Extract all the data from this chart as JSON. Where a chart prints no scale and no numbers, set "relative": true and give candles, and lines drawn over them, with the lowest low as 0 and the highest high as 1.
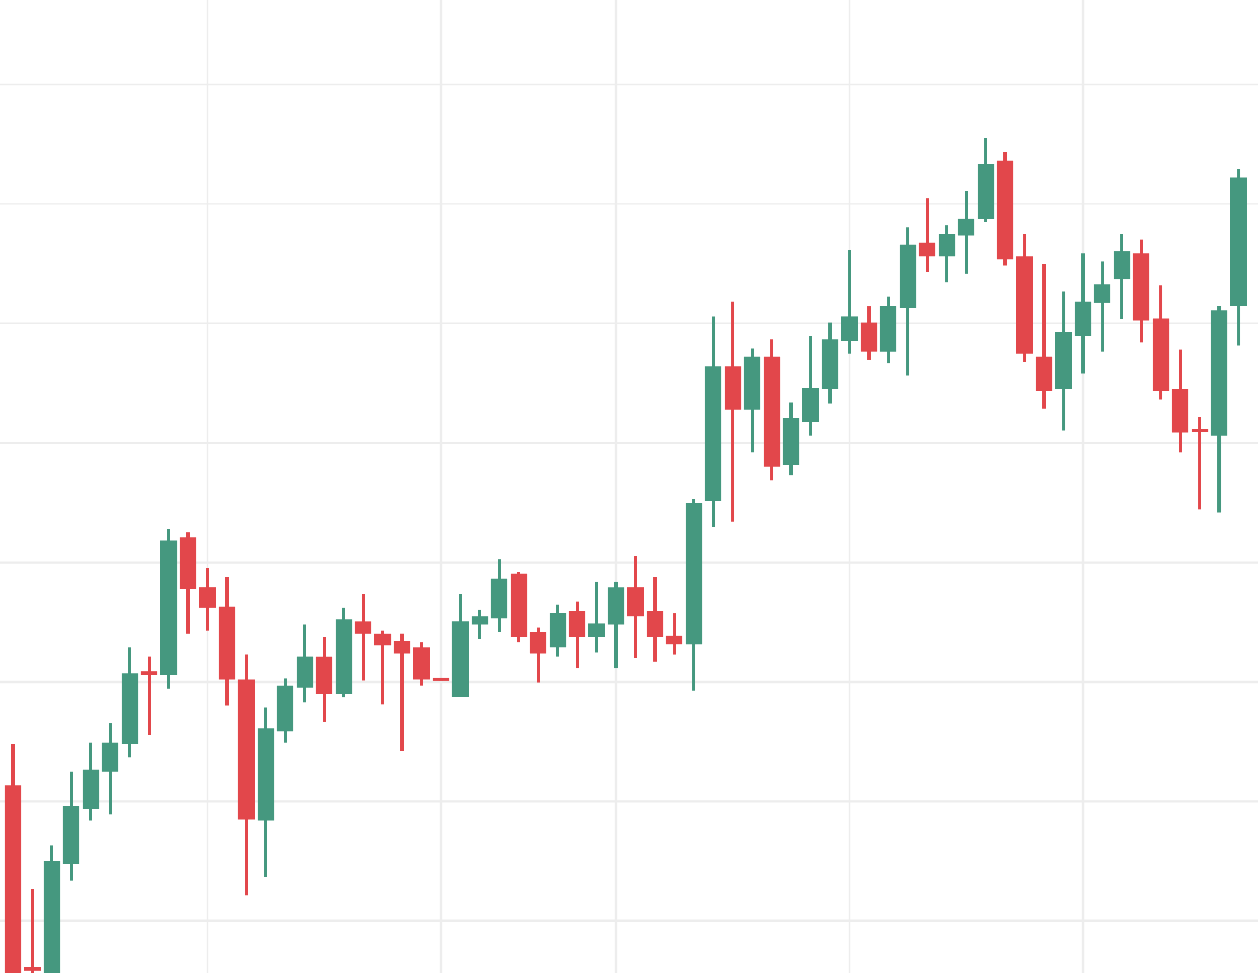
{
  "chart_data": {
    "type": "candlestick",
    "relative": true,
    "grid": true,
    "categories": [
      null,
      null,
      null,
      null,
      null,
      null,
      null,
      null,
      null,
      null,
      null,
      null,
      null,
      null,
      null,
      null,
      null,
      null,
      null,
      null,
      null,
      null,
      null,
      null,
      null,
      null,
      null,
      null,
      null,
      null,
      null,
      null,
      null,
      null,
      null,
      null,
      null,
      null,
      null,
      null,
      null,
      null,
      null,
      null,
      null,
      null,
      null,
      null,
      null,
      null,
      null,
      null,
      null,
      null,
      null,
      null,
      null,
      null,
      null,
      null,
      null,
      null,
      null,
      null
    ],
    "ohlc": [
      [
        0.225,
        0.274,
        0,
        0
      ],
      [
        0.006,
        0.101,
        0,
        0.004
      ],
      [
        0,
        0.153,
        0,
        0.134
      ],
      [
        0.13,
        0.241,
        0.111,
        0.2
      ],
      [
        0.196,
        0.276,
        0.183,
        0.243
      ],
      [
        0.241,
        0.299,
        0.19,
        0.276
      ],
      [
        0.274,
        0.39,
        0.258,
        0.359
      ],
      [
        0.361,
        0.379,
        0.285,
        0.357
      ],
      [
        0.357,
        0.532,
        0.34,
        0.518
      ],
      [
        0.522,
        0.528,
        0.406,
        0.46
      ],
      [
        0.462,
        0.485,
        0.41,
        0.437
      ],
      [
        0.439,
        0.474,
        0.32,
        0.351
      ],
      [
        0.351,
        0.381,
        0.093,
        0.184
      ],
      [
        0.183,
        0.318,
        0.115,
        0.293
      ],
      [
        0.289,
        0.353,
        0.276,
        0.344
      ],
      [
        0.342,
        0.417,
        0.324,
        0.379
      ],
      [
        0.379,
        0.402,
        0.301,
        0.334
      ],
      [
        0.334,
        0.437,
        0.33,
        0.423
      ],
      [
        0.421,
        0.454,
        0.35,
        0.406
      ],
      [
        0.406,
        0.41,
        0.322,
        0.392
      ],
      [
        0.398,
        0.406,
        0.266,
        0.383
      ],
      [
        0.39,
        0.396,
        0.344,
        0.351
      ],
      [
        0.353,
        0.353,
        0.35,
        0.35
      ],
      [
        0.33,
        0.454,
        0.33,
        0.421
      ],
      [
        0.417,
        0.435,
        0.4,
        0.427
      ],
      [
        0.425,
        0.495,
        0.408,
        0.472
      ],
      [
        0.478,
        0.48,
        0.396,
        0.402
      ],
      [
        0.408,
        0.414,
        0.348,
        0.383
      ],
      [
        0.39,
        0.441,
        0.379,
        0.431
      ],
      [
        0.433,
        0.445,
        0.365,
        0.402
      ],
      [
        0.402,
        0.468,
        0.384,
        0.419
      ],
      [
        0.417,
        0.468,
        0.365,
        0.462
      ],
      [
        0.462,
        0.499,
        0.377,
        0.427
      ],
      [
        0.433,
        0.474,
        0.373,
        0.402
      ],
      [
        0.404,
        0.431,
        0.381,
        0.394
      ],
      [
        0.394,
        0.567,
        0.338,
        0.563
      ],
      [
        0.565,
        0.786,
        0.534,
        0.726
      ],
      [
        0.726,
        0.804,
        0.54,
        0.674
      ],
      [
        0.674,
        0.748,
        0.623,
        0.738
      ],
      [
        0.738,
        0.759,
        0.59,
        0.606
      ],
      [
        0.608,
        0.683,
        0.596,
        0.664
      ],
      [
        0.66,
        0.763,
        0.643,
        0.701
      ],
      [
        0.699,
        0.779,
        0.682,
        0.759
      ],
      [
        0.757,
        0.866,
        0.742,
        0.786
      ],
      [
        0.779,
        0.798,
        0.734,
        0.744
      ],
      [
        0.744,
        0.81,
        0.73,
        0.798
      ],
      [
        0.796,
        0.893,
        0.715,
        0.872
      ],
      [
        0.874,
        0.928,
        0.839,
        0.858
      ],
      [
        0.858,
        0.895,
        0.827,
        0.885
      ],
      [
        0.883,
        0.936,
        0.837,
        0.903
      ],
      [
        0.903,
        1,
        0.899,
        0.969
      ],
      [
        0.973,
        0.983,
        0.847,
        0.854
      ],
      [
        0.858,
        0.885,
        0.732,
        0.742
      ],
      [
        0.738,
        0.849,
        0.676,
        0.697
      ],
      [
        0.699,
        0.816,
        0.65,
        0.767
      ],
      [
        0.763,
        0.862,
        0.718,
        0.804
      ],
      [
        0.802,
        0.852,
        0.744,
        0.825
      ],
      [
        0.831,
        0.885,
        0.783,
        0.864
      ],
      [
        0.862,
        0.878,
        0.755,
        0.781
      ],
      [
        0.784,
        0.823,
        0.687,
        0.697
      ],
      [
        0.699,
        0.746,
        0.623,
        0.647
      ],
      [
        0.65,
        0.666,
        0.555,
        0.649
      ],
      [
        0.643,
        0.798,
        0.551,
        0.794
      ],
      [
        0.798,
        0.963,
        0.751,
        0.953
      ]
    ],
    "colors": [
      "#e2474b",
      "#e2474b",
      "#45987f",
      "#45987f",
      "#45987f",
      "#45987f",
      "#45987f",
      "#e2474b",
      "#45987f",
      "#e2474b",
      "#e2474b",
      "#e2474b",
      "#e2474b",
      "#45987f",
      "#45987f",
      "#45987f",
      "#e2474b",
      "#45987f",
      "#e2474b",
      "#e2474b",
      "#e2474b",
      "#e2474b",
      "#e2474b",
      "#45987f",
      "#45987f",
      "#45987f",
      "#e2474b",
      "#e2474b",
      "#45987f",
      "#e2474b",
      "#45987f",
      "#45987f",
      "#e2474b",
      "#e2474b",
      "#e2474b",
      "#45987f",
      "#45987f",
      "#e2474b",
      "#45987f",
      "#e2474b",
      "#45987f",
      "#45987f",
      "#45987f",
      "#45987f",
      "#e2474b",
      "#45987f",
      "#45987f",
      "#e2474b",
      "#45987f",
      "#45987f",
      "#45987f",
      "#e2474b",
      "#e2474b",
      "#e2474b",
      "#45987f",
      "#45987f",
      "#45987f",
      "#45987f",
      "#e2474b",
      "#e2474b",
      "#e2474b",
      "#e2474b",
      "#45987f",
      "#45987f"
    ]
  }
}
